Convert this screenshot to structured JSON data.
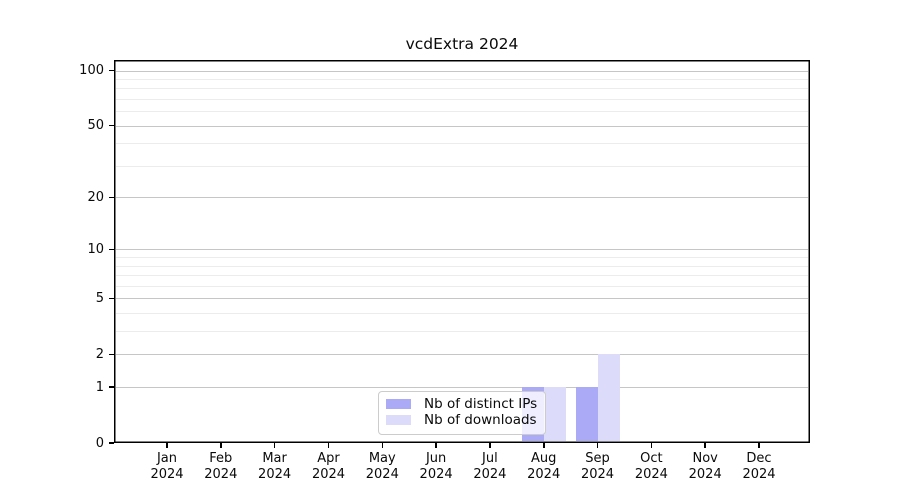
{
  "title": "vcdExtra 2024",
  "chart_data": {
    "type": "bar",
    "title": "vcdExtra 2024",
    "xlabel": "",
    "ylabel": "",
    "categories": [
      "Jan 2024",
      "Feb 2024",
      "Mar 2024",
      "Apr 2024",
      "May 2024",
      "Jun 2024",
      "Jul 2024",
      "Aug 2024",
      "Sep 2024",
      "Oct 2024",
      "Nov 2024",
      "Dec 2024"
    ],
    "series": [
      {
        "name": "Nb of distinct IPs",
        "color": "#aaaaf7",
        "values": [
          0,
          0,
          0,
          0,
          0,
          0,
          0,
          1,
          1,
          0,
          0,
          0
        ]
      },
      {
        "name": "Nb of downloads",
        "color": "#dcdcfa",
        "values": [
          0,
          0,
          0,
          0,
          0,
          0,
          0,
          1,
          2,
          0,
          0,
          0
        ]
      }
    ],
    "yscale": "log1p",
    "ylim": [
      0,
      114
    ],
    "y_major_ticks": [
      0,
      1,
      2,
      5,
      10,
      20,
      50,
      100
    ],
    "y_minor_ticks": [
      3,
      4,
      6,
      7,
      8,
      9,
      30,
      40,
      60,
      70,
      80,
      90
    ],
    "grid": true,
    "legend_position": "bottom-center"
  },
  "legend": {
    "items": [
      {
        "label": "Nb of distinct IPs",
        "color": "#aaaaf7"
      },
      {
        "label": "Nb of downloads",
        "color": "#dcdcfa"
      }
    ]
  },
  "colors": {
    "background": "#ffffff",
    "axis": "#000000",
    "major_grid": "#c6c6c6",
    "minor_grid": "#ececec",
    "bar_distinct_ips": "#aaaaf7",
    "bar_downloads": "#dcdcfa"
  }
}
